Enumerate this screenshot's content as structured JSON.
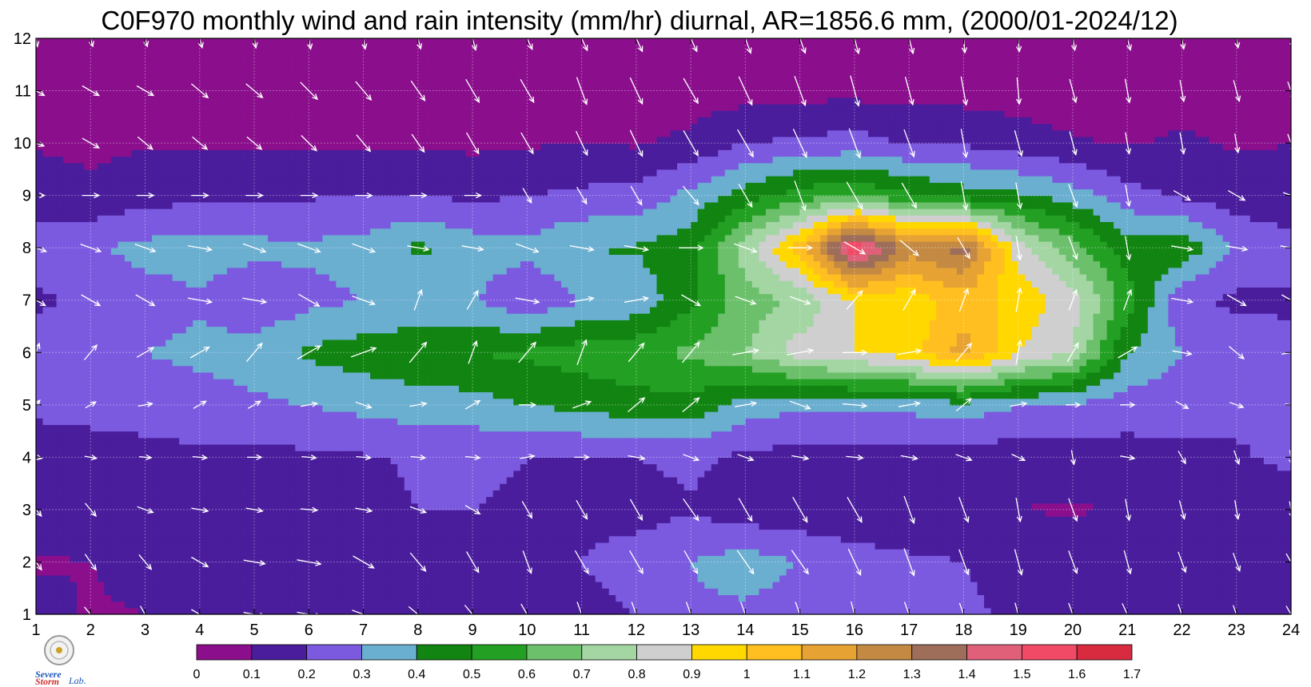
{
  "chart_data": {
    "type": "heatmap",
    "title": "C0F970 monthly wind and rain intensity (mm/hr) diurnal, AR=1856.6 mm, (2000/01-2024/12)",
    "xlabel": "",
    "ylabel": "",
    "xlim": [
      1,
      24
    ],
    "ylim": [
      1,
      12
    ],
    "x_ticks": [
      "1",
      "2",
      "3",
      "4",
      "5",
      "6",
      "7",
      "8",
      "9",
      "10",
      "11",
      "12",
      "13",
      "14",
      "15",
      "16",
      "17",
      "18",
      "19",
      "20",
      "21",
      "22",
      "23",
      "24"
    ],
    "y_ticks": [
      "1",
      "2",
      "3",
      "4",
      "5",
      "6",
      "7",
      "8",
      "9",
      "10",
      "11",
      "12"
    ],
    "grid": true,
    "legend": "bottom colorbar",
    "colorbar": {
      "ticks": [
        "0",
        "0.1",
        "0.2",
        "0.3",
        "0.4",
        "0.5",
        "0.6",
        "0.7",
        "0.8",
        "0.9",
        "1",
        "1.1",
        "1.2",
        "1.3",
        "1.4",
        "1.5",
        "1.6",
        "1.7"
      ],
      "colors": [
        "#8b0f8c",
        "#4a1d9c",
        "#7b5ae0",
        "#6aaed0",
        "#118411",
        "#23a023",
        "#6cc06c",
        "#a4d6a4",
        "#cfcfcf",
        "#ffd800",
        "#ffbf20",
        "#e6a233",
        "#c48a44",
        "#9e6e5a",
        "#e0607a",
        "#f04a66",
        "#d82b40"
      ]
    },
    "z": [
      [
        0.14,
        0.09,
        0.1,
        0.14,
        0.15,
        0.17,
        0.15,
        0.14,
        0.13,
        0.12,
        0.16,
        0.2,
        0.28,
        0.28,
        0.25,
        0.22,
        0.24,
        0.21,
        0.19,
        0.16,
        0.15,
        0.13,
        0.14,
        0.1
      ],
      [
        0.09,
        0.1,
        0.13,
        0.14,
        0.15,
        0.17,
        0.16,
        0.15,
        0.14,
        0.15,
        0.2,
        0.25,
        0.3,
        0.35,
        0.3,
        0.25,
        0.22,
        0.2,
        0.18,
        0.16,
        0.15,
        0.14,
        0.12,
        0.13
      ],
      [
        0.14,
        0.16,
        0.17,
        0.18,
        0.19,
        0.2,
        0.18,
        0.2,
        0.2,
        0.18,
        0.18,
        0.16,
        0.19,
        0.14,
        0.13,
        0.12,
        0.11,
        0.12,
        0.1,
        0.09,
        0.11,
        0.12,
        0.13,
        0.14
      ],
      [
        0.15,
        0.16,
        0.17,
        0.18,
        0.17,
        0.18,
        0.19,
        0.21,
        0.22,
        0.2,
        0.2,
        0.2,
        0.22,
        0.18,
        0.16,
        0.15,
        0.15,
        0.15,
        0.14,
        0.15,
        0.16,
        0.18,
        0.19,
        0.22
      ],
      [
        0.22,
        0.23,
        0.24,
        0.26,
        0.28,
        0.3,
        0.33,
        0.35,
        0.36,
        0.4,
        0.43,
        0.46,
        0.47,
        0.35,
        0.32,
        0.32,
        0.33,
        0.36,
        0.3,
        0.28,
        0.25,
        0.24,
        0.22,
        0.2
      ],
      [
        0.26,
        0.28,
        0.3,
        0.32,
        0.35,
        0.42,
        0.45,
        0.48,
        0.5,
        0.52,
        0.55,
        0.57,
        0.62,
        0.7,
        0.85,
        0.9,
        0.95,
        1.15,
        0.9,
        0.8,
        0.4,
        0.3,
        0.25,
        0.22
      ],
      [
        0.18,
        0.22,
        0.26,
        0.29,
        0.22,
        0.27,
        0.3,
        0.32,
        0.31,
        0.21,
        0.3,
        0.33,
        0.48,
        0.65,
        0.72,
        0.9,
        0.93,
        1.05,
        0.97,
        0.85,
        0.55,
        0.22,
        0.18,
        0.19
      ],
      [
        0.26,
        0.29,
        0.33,
        0.34,
        0.33,
        0.32,
        0.34,
        0.42,
        0.35,
        0.33,
        0.4,
        0.41,
        0.46,
        0.75,
        1.05,
        1.6,
        1.25,
        1.35,
        0.85,
        0.65,
        0.45,
        0.48,
        0.28,
        0.24
      ],
      [
        0.15,
        0.12,
        0.16,
        0.18,
        0.18,
        0.19,
        0.2,
        0.2,
        0.18,
        0.2,
        0.22,
        0.24,
        0.33,
        0.45,
        0.55,
        0.6,
        0.52,
        0.45,
        0.42,
        0.35,
        0.24,
        0.18,
        0.15,
        0.13
      ],
      [
        0.09,
        0.08,
        0.09,
        0.09,
        0.09,
        0.09,
        0.08,
        0.09,
        0.08,
        0.09,
        0.1,
        0.09,
        0.12,
        0.2,
        0.22,
        0.24,
        0.19,
        0.19,
        0.15,
        0.11,
        0.09,
        0.12,
        0.09,
        0.1
      ],
      [
        0.04,
        0.04,
        0.05,
        0.05,
        0.05,
        0.05,
        0.05,
        0.06,
        0.06,
        0.06,
        0.05,
        0.06,
        0.06,
        0.06,
        0.07,
        0.07,
        0.06,
        0.06,
        0.05,
        0.05,
        0.05,
        0.04,
        0.04,
        0.04
      ],
      [
        0.03,
        0.03,
        0.03,
        0.03,
        0.03,
        0.03,
        0.03,
        0.03,
        0.03,
        0.03,
        0.03,
        0.03,
        0.03,
        0.03,
        0.03,
        0.03,
        0.03,
        0.03,
        0.03,
        0.03,
        0.03,
        0.03,
        0.03,
        0.03
      ]
    ],
    "wind_direction_deg": [
      [
        150,
        140,
        150,
        120,
        100,
        100,
        110,
        130,
        140,
        150,
        160,
        160,
        160,
        160,
        160,
        165,
        160,
        160,
        165,
        160,
        155,
        160,
        160,
        150
      ],
      [
        145,
        145,
        140,
        120,
        100,
        100,
        120,
        140,
        150,
        160,
        150,
        150,
        150,
        145,
        145,
        155,
        160,
        160,
        165,
        160,
        165,
        160,
        160,
        150
      ],
      [
        140,
        140,
        110,
        100,
        100,
        95,
        100,
        110,
        120,
        150,
        150,
        150,
        145,
        150,
        150,
        150,
        160,
        160,
        170,
        160,
        170,
        165,
        170,
        170
      ],
      [
        100,
        100,
        95,
        95,
        90,
        95,
        95,
        95,
        95,
        80,
        90,
        100,
        110,
        110,
        100,
        95,
        100,
        110,
        115,
        170,
        100,
        150,
        160,
        170
      ],
      [
        40,
        60,
        80,
        60,
        60,
        80,
        110,
        80,
        60,
        90,
        70,
        50,
        50,
        80,
        110,
        95,
        80,
        50,
        80,
        90,
        90,
        120,
        110,
        100
      ],
      [
        20,
        40,
        60,
        60,
        40,
        60,
        70,
        40,
        20,
        40,
        20,
        40,
        40,
        80,
        80,
        90,
        80,
        40,
        10,
        30,
        60,
        100,
        130,
        80
      ],
      [
        120,
        120,
        120,
        100,
        100,
        120,
        110,
        20,
        30,
        100,
        80,
        80,
        120,
        110,
        110,
        40,
        30,
        20,
        10,
        20,
        20,
        100,
        120,
        120
      ],
      [
        110,
        110,
        110,
        100,
        110,
        110,
        110,
        100,
        100,
        110,
        100,
        100,
        90,
        110,
        90,
        120,
        130,
        150,
        170,
        160,
        170,
        100,
        100,
        100
      ],
      [
        90,
        90,
        90,
        90,
        90,
        90,
        90,
        90,
        90,
        150,
        150,
        150,
        140,
        150,
        160,
        150,
        150,
        170,
        170,
        160,
        170,
        120,
        120,
        110
      ],
      [
        110,
        120,
        130,
        130,
        130,
        135,
        140,
        145,
        150,
        150,
        155,
        155,
        150,
        150,
        155,
        160,
        160,
        170,
        165,
        165,
        170,
        170,
        170,
        160
      ],
      [
        120,
        120,
        120,
        130,
        130,
        135,
        140,
        145,
        150,
        150,
        160,
        155,
        150,
        155,
        160,
        165,
        165,
        170,
        175,
        165,
        170,
        170,
        165,
        160
      ],
      [
        170,
        165,
        165,
        165,
        170,
        170,
        170,
        165,
        165,
        155,
        155,
        155,
        155,
        160,
        160,
        165,
        165,
        175,
        175,
        170,
        165,
        170,
        170,
        165
      ]
    ],
    "wind_speed_rel": [
      [
        0.8,
        0.8,
        0.8,
        0.8,
        0.9,
        1.0,
        1.0,
        1.0,
        1.0,
        1.0,
        1.1,
        1.1,
        1.1,
        1.1,
        1.1,
        1.1,
        1.1,
        1.0,
        1.0,
        1.0,
        1.0,
        0.9,
        0.8,
        0.8
      ],
      [
        0.8,
        0.8,
        0.8,
        0.8,
        0.9,
        1.0,
        1.0,
        1.0,
        1.0,
        1.0,
        1.1,
        1.1,
        1.1,
        1.2,
        1.2,
        1.2,
        1.2,
        1.1,
        1.1,
        1.0,
        1.0,
        0.9,
        0.8,
        0.8
      ],
      [
        0.7,
        0.7,
        0.7,
        0.7,
        0.7,
        0.7,
        0.7,
        0.7,
        0.7,
        0.8,
        0.9,
        1.0,
        1.1,
        1.1,
        1.2,
        1.2,
        1.2,
        1.1,
        1.0,
        1.0,
        0.9,
        0.8,
        0.8,
        0.7
      ],
      [
        0.5,
        0.5,
        0.5,
        0.6,
        0.6,
        0.6,
        0.6,
        0.6,
        0.6,
        0.6,
        0.6,
        0.7,
        0.7,
        0.7,
        0.7,
        0.7,
        0.7,
        0.7,
        0.6,
        0.6,
        0.6,
        0.6,
        0.6,
        0.6
      ],
      [
        0.5,
        0.5,
        0.6,
        0.6,
        0.6,
        0.7,
        0.7,
        0.7,
        0.7,
        0.7,
        0.8,
        0.9,
        0.9,
        0.9,
        0.9,
        1.0,
        0.9,
        0.8,
        0.7,
        0.6,
        0.6,
        0.6,
        0.6,
        0.5
      ],
      [
        0.8,
        0.8,
        0.8,
        0.9,
        1.0,
        1.1,
        1.1,
        1.1,
        1.0,
        1.1,
        1.1,
        1.0,
        1.1,
        1.1,
        1.1,
        1.0,
        1.0,
        1.0,
        1.0,
        0.9,
        0.9,
        0.8,
        0.8,
        0.8
      ],
      [
        0.9,
        0.9,
        0.9,
        1.0,
        1.0,
        1.0,
        1.0,
        0.9,
        0.9,
        1.0,
        1.0,
        1.0,
        0.9,
        0.9,
        0.9,
        1.0,
        1.0,
        1.0,
        1.0,
        0.9,
        0.9,
        0.9,
        0.9,
        0.9
      ],
      [
        0.9,
        0.9,
        0.9,
        1.0,
        1.0,
        1.0,
        1.0,
        0.9,
        0.9,
        1.0,
        1.0,
        1.0,
        1.0,
        1.0,
        1.0,
        1.0,
        1.0,
        1.0,
        1.0,
        1.0,
        1.0,
        0.9,
        0.9,
        0.9
      ],
      [
        0.7,
        0.7,
        0.7,
        0.7,
        0.7,
        0.7,
        0.7,
        0.7,
        0.7,
        0.7,
        0.8,
        0.9,
        1.0,
        1.1,
        1.3,
        1.3,
        1.2,
        1.2,
        1.1,
        1.0,
        0.9,
        0.8,
        0.8,
        0.7
      ],
      [
        0.7,
        0.8,
        0.8,
        0.8,
        0.8,
        0.9,
        0.9,
        0.9,
        1.0,
        1.0,
        1.1,
        1.2,
        1.2,
        1.3,
        1.3,
        1.3,
        1.2,
        1.2,
        1.1,
        1.0,
        0.9,
        0.9,
        0.8,
        0.8
      ],
      [
        0.8,
        0.8,
        0.8,
        0.9,
        0.9,
        1.0,
        1.0,
        1.0,
        1.1,
        1.1,
        1.2,
        1.2,
        1.2,
        1.3,
        1.3,
        1.3,
        1.2,
        1.2,
        1.1,
        1.0,
        1.0,
        0.9,
        0.9,
        0.8
      ],
      [
        0.7,
        0.7,
        0.7,
        0.8,
        0.8,
        0.9,
        0.9,
        0.9,
        1.0,
        1.0,
        1.1,
        1.2,
        1.2,
        1.3,
        1.3,
        1.3,
        1.3,
        1.2,
        1.1,
        1.0,
        1.0,
        0.9,
        0.8,
        0.8
      ]
    ]
  },
  "logo": {
    "line1": "Severe",
    "line2": "Storm",
    "line3": "Lab."
  }
}
